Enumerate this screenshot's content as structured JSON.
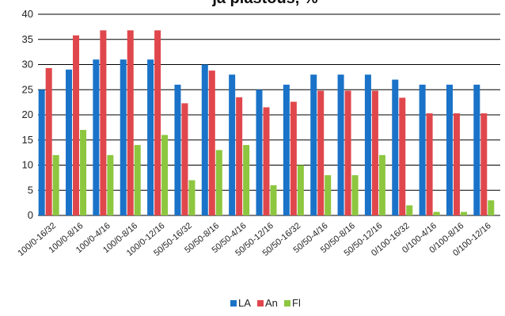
{
  "chart_data": {
    "type": "bar",
    "title": "ja plastous, %",
    "xlabel": "",
    "ylabel": "",
    "ylim": [
      0,
      40
    ],
    "yticks": [
      0,
      5,
      10,
      15,
      20,
      25,
      30,
      35,
      40
    ],
    "grid": true,
    "legend_position": "bottom",
    "categories": [
      "100/0-16/32",
      "100/0-8/16",
      "100/0-4/16",
      "100/0-8/16",
      "100/0-12/16",
      "50/50-16/32",
      "50/50-8/16",
      "50/50-4/16",
      "50/50-12/16",
      "50/50-16/32",
      "50/50-4/16",
      "50/50-8/16",
      "50/50-12/16",
      "0/100-16/32",
      "0/100-4/16",
      "0/100-8/16",
      "0/100-12/16"
    ],
    "series": [
      {
        "name": "LA",
        "color": "#1a73c8",
        "values": [
          25,
          29,
          31,
          31,
          31,
          26,
          30,
          28,
          25,
          26,
          28,
          28,
          28,
          27,
          26,
          26,
          26
        ]
      },
      {
        "name": "An",
        "color": "#e0474c",
        "values": [
          29.3,
          35.8,
          36.8,
          36.8,
          36.8,
          22.3,
          28.8,
          23.5,
          21.5,
          22.6,
          24.8,
          24.8,
          24.8,
          23.4,
          20.3,
          20.3,
          20.3
        ]
      },
      {
        "name": "Fl",
        "color": "#8dc63f",
        "values": [
          12,
          17,
          12,
          14,
          16,
          7,
          13,
          14,
          6,
          10,
          8,
          8,
          12,
          2,
          0.7,
          0.7,
          3
        ]
      }
    ]
  }
}
